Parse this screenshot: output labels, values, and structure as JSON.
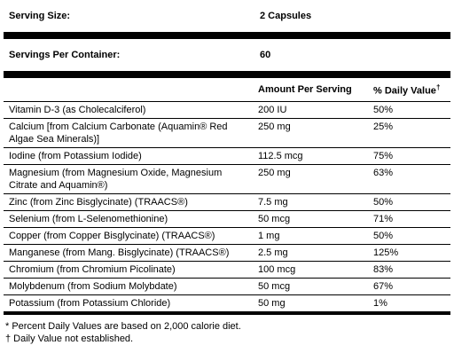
{
  "serving_size": {
    "label": "Serving Size:",
    "value": "2 Capsules"
  },
  "servings_per_container": {
    "label": "Servings Per Container:",
    "value": "60"
  },
  "table": {
    "headers": [
      "Amount Per Serving",
      "% Daily Value",
      "†"
    ],
    "rows": [
      [
        "Vitamin D-3 (as Cholecalciferol)",
        "200 IU",
        "50%"
      ],
      [
        "Calcium [from Calcium Carbonate (Aquamin® Red Algae Sea Minerals)]",
        "250 mg",
        "25%"
      ],
      [
        "Iodine (from Potassium Iodide)",
        "112.5 mcg",
        "75%"
      ],
      [
        "Magnesium (from Magnesium Oxide, Magnesium Citrate and Aquamin®)",
        "250 mg",
        "63%"
      ],
      [
        "Zinc (from Zinc Bisglycinate) (TRAACS®)",
        "7.5 mg",
        "50%"
      ],
      [
        "Selenium (from L-Selenomethionine)",
        "50 mcg",
        "71%"
      ],
      [
        "Copper (from Copper Bisglycinate) (TRAACS®)",
        "1 mg",
        "50%"
      ],
      [
        "Manganese (from Mang. Bisglycinate) (TRAACS®)",
        "2.5 mg",
        "125%"
      ],
      [
        "Chromium (from Chromium Picolinate)",
        "100 mcg",
        "83%"
      ],
      [
        "Molybdenum (from Sodium Molybdate)",
        "50 mcg",
        "67%"
      ],
      [
        "Potassium (from Potassium Chloride)",
        "50 mg",
        "1%"
      ]
    ]
  },
  "footnotes": [
    "* Percent Daily Values are based on 2,000 calorie diet.",
    "† Daily Value not established."
  ]
}
